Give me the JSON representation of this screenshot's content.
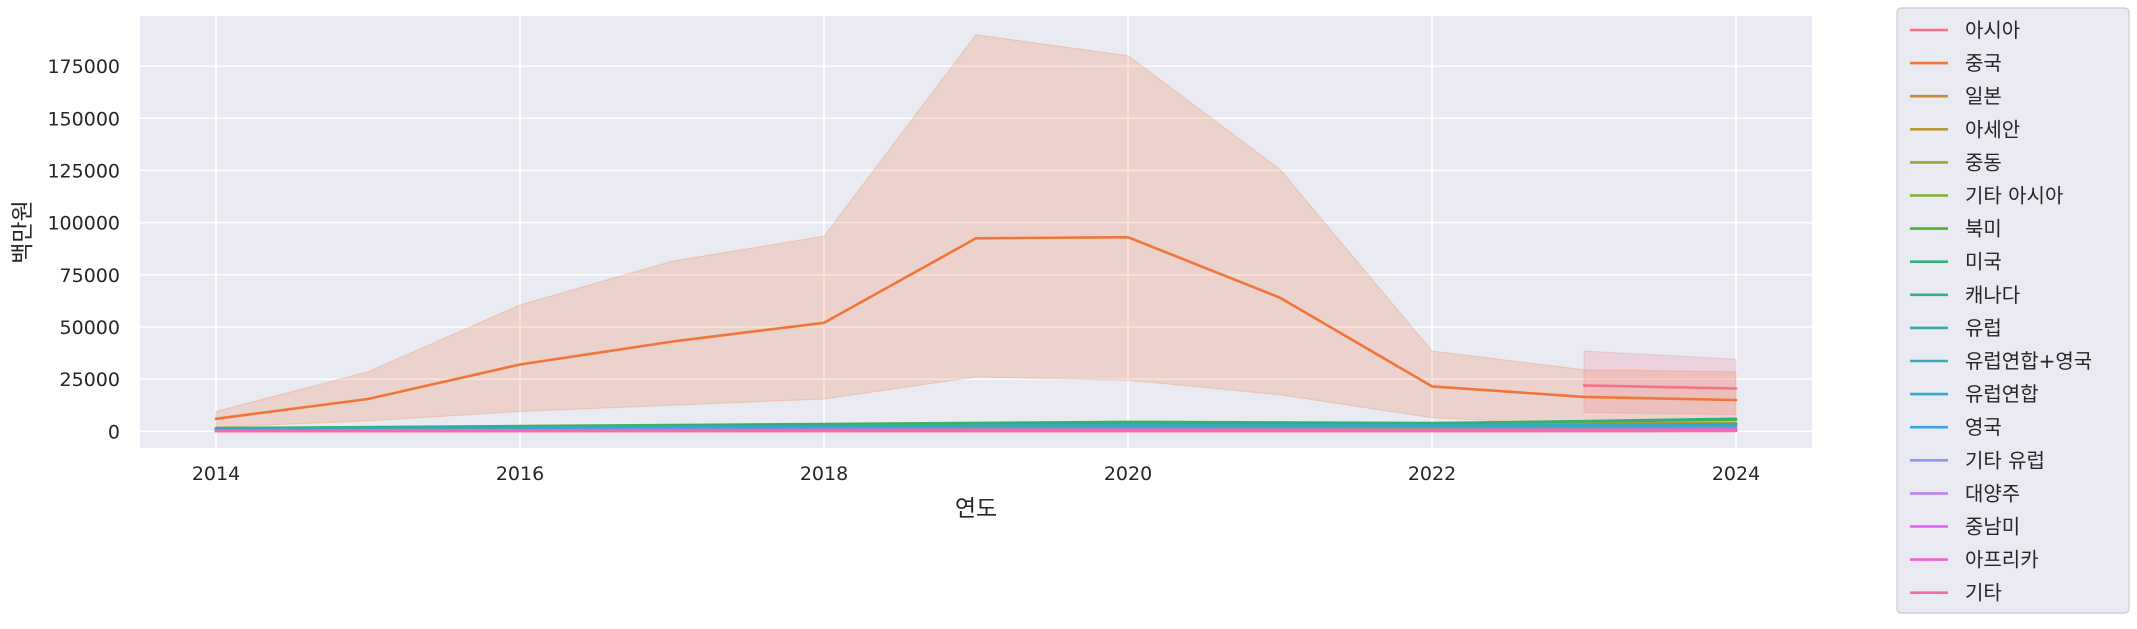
{
  "chart_data": {
    "type": "line",
    "xlabel": "연도",
    "ylabel": "백만원",
    "xlim": [
      2013.5,
      2024.5
    ],
    "ylim": [
      -8000,
      199000
    ],
    "xticks": [
      2014,
      2016,
      2018,
      2020,
      2022,
      2024
    ],
    "yticks": [
      0,
      25000,
      50000,
      75000,
      100000,
      125000,
      150000,
      175000
    ],
    "grid": true,
    "legend_position": "outside-right",
    "background": "#eaeaf2",
    "series": [
      {
        "name": "아시아",
        "color": "#f77189",
        "x": [
          2023,
          2024
        ],
        "y": [
          22000,
          20500
        ],
        "band_low": [
          9000,
          8000
        ],
        "band_high": [
          38500,
          34500
        ]
      },
      {
        "name": "중국",
        "color": "#f0753a",
        "x": [
          2014,
          2015,
          2016,
          2017,
          2018,
          2019,
          2020,
          2021,
          2022,
          2023,
          2024
        ],
        "y": [
          6000,
          15500,
          32000,
          43000,
          52000,
          92500,
          93000,
          64000,
          21500,
          16500,
          15000
        ],
        "band_low": [
          2000,
          5000,
          9500,
          12500,
          15500,
          26000,
          24500,
          17500,
          6500,
          3000,
          2500
        ],
        "band_high": [
          9500,
          28500,
          60500,
          81500,
          93500,
          190000,
          180000,
          125500,
          38500,
          29500,
          28500
        ]
      },
      {
        "name": "일본",
        "color": "#c88a32",
        "x": [
          2014,
          2016,
          2018,
          2020,
          2022,
          2024
        ],
        "y": [
          1500,
          2200,
          2800,
          3000,
          2600,
          3500
        ],
        "band_low": [],
        "band_high": []
      },
      {
        "name": "아세안",
        "color": "#b39a31",
        "x": [
          2014,
          2016,
          2018,
          2020,
          2022,
          2024
        ],
        "y": [
          1200,
          2000,
          3200,
          3800,
          3500,
          4000
        ],
        "band_low": [],
        "band_high": []
      },
      {
        "name": "중동",
        "color": "#9ca431",
        "x": [
          2014,
          2016,
          2018,
          2020,
          2022,
          2024
        ],
        "y": [
          900,
          1200,
          1600,
          1800,
          1500,
          2000
        ],
        "band_low": [],
        "band_high": []
      },
      {
        "name": "기타 아시아",
        "color": "#7daf31",
        "x": [
          2014,
          2016,
          2018,
          2020,
          2022,
          2024
        ],
        "y": [
          600,
          900,
          1100,
          1200,
          1100,
          1300
        ],
        "band_low": [],
        "band_high": []
      },
      {
        "name": "북미",
        "color": "#4fb331",
        "x": [
          2014,
          2016,
          2018,
          2020,
          2022,
          2024
        ],
        "y": [
          1500,
          2500,
          3500,
          4500,
          4000,
          5500
        ],
        "band_low": [],
        "band_high": []
      },
      {
        "name": "미국",
        "color": "#33b07a",
        "x": [
          2014,
          2016,
          2018,
          2020,
          2022,
          2024
        ],
        "y": [
          1400,
          2300,
          3200,
          4200,
          3800,
          6000
        ],
        "band_low": [],
        "band_high": []
      },
      {
        "name": "캐나다",
        "color": "#35ad96",
        "x": [
          2014,
          2016,
          2018,
          2020,
          2022,
          2024
        ],
        "y": [
          200,
          300,
          400,
          500,
          450,
          600
        ],
        "band_low": [],
        "band_high": []
      },
      {
        "name": "유럽",
        "color": "#36aba8",
        "x": [
          2014,
          2016,
          2018,
          2020,
          2022,
          2024
        ],
        "y": [
          1200,
          1800,
          2500,
          3000,
          2800,
          3500
        ],
        "band_low": [],
        "band_high": []
      },
      {
        "name": "유럽연합+영국",
        "color": "#37a9b8",
        "x": [
          2014,
          2016,
          2018,
          2020,
          2022,
          2024
        ],
        "y": [
          1100,
          1600,
          2300,
          2800,
          2600,
          3200
        ],
        "band_low": [],
        "band_high": []
      },
      {
        "name": "유럽연합",
        "color": "#38a7ca",
        "x": [
          2014,
          2016,
          2018,
          2020,
          2022,
          2024
        ],
        "y": [
          900,
          1400,
          2000,
          2400,
          2200,
          2800
        ],
        "band_low": [],
        "band_high": []
      },
      {
        "name": "영국",
        "color": "#3ba3ec",
        "x": [
          2014,
          2016,
          2018,
          2020,
          2022,
          2024
        ],
        "y": [
          200,
          300,
          400,
          400,
          400,
          500
        ],
        "band_low": [],
        "band_high": []
      },
      {
        "name": "기타 유럽",
        "color": "#8e95f4",
        "x": [
          2014,
          2016,
          2018,
          2020,
          2022,
          2024
        ],
        "y": [
          150,
          200,
          300,
          350,
          300,
          400
        ],
        "band_low": [],
        "band_high": []
      },
      {
        "name": "대양주",
        "color": "#bb83f4",
        "x": [
          2014,
          2016,
          2018,
          2020,
          2022,
          2024
        ],
        "y": [
          300,
          500,
          700,
          800,
          700,
          900
        ],
        "band_low": [],
        "band_high": []
      },
      {
        "name": "중남미",
        "color": "#e15ff0",
        "x": [
          2014,
          2016,
          2018,
          2020,
          2022,
          2024
        ],
        "y": [
          250,
          400,
          600,
          700,
          600,
          800
        ],
        "band_low": [],
        "band_high": []
      },
      {
        "name": "아프리카",
        "color": "#f45fcc",
        "x": [
          2014,
          2016,
          2018,
          2020,
          2022,
          2024
        ],
        "y": [
          100,
          150,
          200,
          250,
          200,
          300
        ],
        "band_low": [],
        "band_high": []
      },
      {
        "name": "기타",
        "color": "#f668b0",
        "x": [
          2014,
          2016,
          2018,
          2020,
          2022,
          2024
        ],
        "y": [
          50,
          80,
          100,
          120,
          100,
          150
        ],
        "band_low": [],
        "band_high": []
      }
    ]
  }
}
